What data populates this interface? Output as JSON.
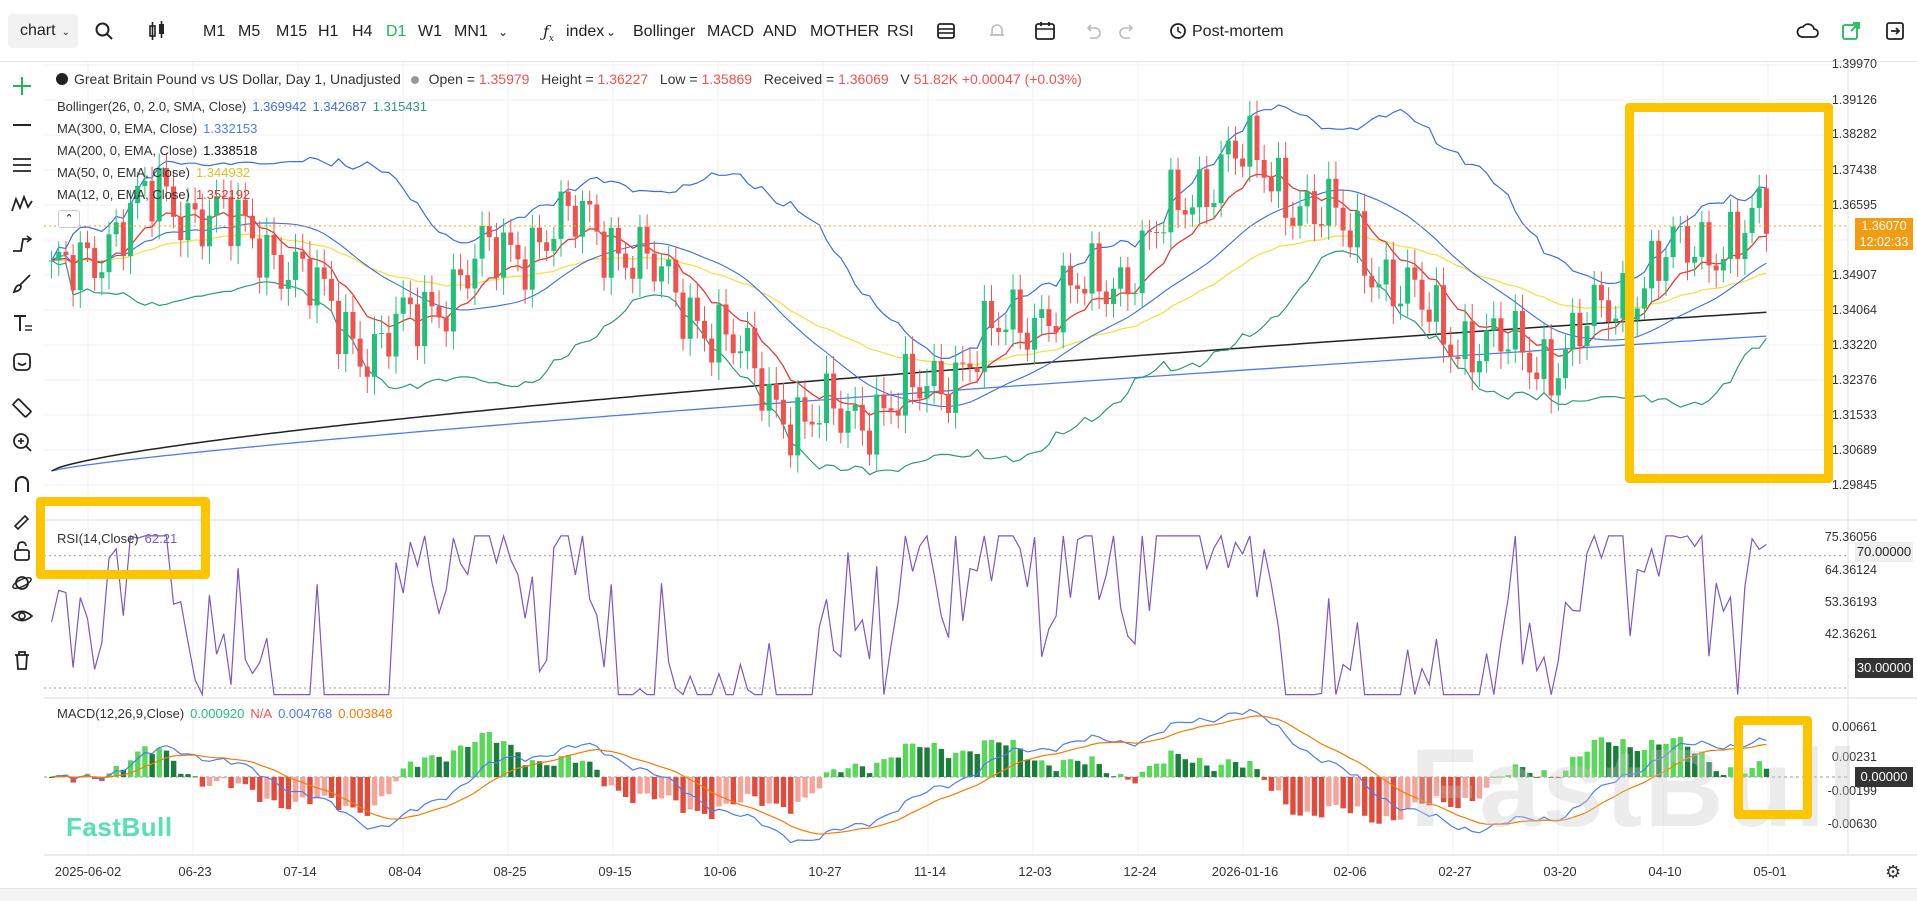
{
  "toolbar": {
    "chart_select": "chart",
    "timeframes": [
      "M1",
      "M5",
      "M15",
      "H1",
      "H4",
      "D1",
      "W1",
      "MN1"
    ],
    "active_timeframe": "D1",
    "index_label": "index",
    "indicators": [
      "Bollinger",
      "MACD",
      "AND",
      "MOTHER",
      "RSI"
    ],
    "postmortem": "Post-mortem"
  },
  "legend": {
    "title": "Great Britain Pound vs US Dollar, Day 1, Unadjusted",
    "open_label": "Open =",
    "open": "1.35979",
    "high_label": "Height =",
    "high": "1.36227",
    "low_label": "Low =",
    "low": "1.35869",
    "close_label": "Received =",
    "close": "1.36069",
    "vol_label": "V",
    "vol": "51.82K",
    "change": "+0.00047 (+0.03%)",
    "bollinger": {
      "label": "Bollinger(26, 0, 2.0, SMA, Close)",
      "v1": "1.369942",
      "v2": "1.342687",
      "v3": "1.315431"
    },
    "ma300": {
      "label": "MA(300, 0, EMA, Close)",
      "value": "1.332153"
    },
    "ma200": {
      "label": "MA(200, 0, EMA, Close)",
      "value": "1.338518"
    },
    "ma50": {
      "label": "MA(50, 0, EMA, Close)",
      "value": "1.344932"
    },
    "ma12": {
      "label": "MA(12, 0, EMA, Close)",
      "value": "1.352192"
    },
    "rsi": {
      "label": "RSI(14,Close)",
      "value": "62.21"
    },
    "macd": {
      "label": "MACD(12,26,9,Close)",
      "v1": "0.000920",
      "v2": "N/A",
      "v3": "0.004768",
      "v4": "0.003848"
    }
  },
  "price_axis": [
    "1.39970",
    "1.39126",
    "1.38282",
    "1.37438",
    "1.36595",
    "1.34907",
    "1.34064",
    "1.33220",
    "1.32376",
    "1.31533",
    "1.30689",
    "1.29845"
  ],
  "price_tag": {
    "price": "1.36070",
    "time": "12:02:33"
  },
  "rsi_axis": [
    "75.36056",
    "70.00000",
    "64.36124",
    "53.36193",
    "42.36261",
    "30.00000"
  ],
  "macd_axis": [
    "0.00661",
    "0.00231",
    "0.00000",
    "-0.00199",
    "-0.00630"
  ],
  "x_labels": [
    "2025-06-02",
    "06-23",
    "07-14",
    "08-04",
    "08-25",
    "09-15",
    "10-06",
    "10-27",
    "11-14",
    "12-03",
    "12-24",
    "2026-01-16",
    "02-06",
    "02-27",
    "03-20",
    "04-10",
    "05-01"
  ],
  "watermark": "FastBull",
  "watermark_big": "FastBull",
  "colors": {
    "up": "#22c07a",
    "down": "#ef5350",
    "accent": "#1db954",
    "highlight": "#fcc500",
    "bb": "#3a6fe0",
    "bbmid": "#2b9a78",
    "ma12": "#e53935",
    "ma50": "#f5e04a",
    "ma200": "#222222",
    "ma300": "#4d7cf0",
    "rsi": "#7e57c2",
    "macd": "#4d7cf0",
    "signal": "#f57c00"
  },
  "chart_data": {
    "type": "candlestick",
    "symbol": "GBPUSD",
    "timeframe": "D1",
    "x": [
      "2025-06-02",
      "06-23",
      "07-14",
      "08-04",
      "08-25",
      "09-15",
      "10-06",
      "10-27",
      "11-14",
      "12-03",
      "12-24",
      "2026-01-16",
      "02-06",
      "02-27",
      "03-20",
      "04-10",
      "05-01"
    ],
    "close_approx": [
      1.345,
      1.368,
      1.356,
      1.328,
      1.351,
      1.362,
      1.339,
      1.31,
      1.316,
      1.336,
      1.348,
      1.379,
      1.36,
      1.333,
      1.326,
      1.351,
      1.3607
    ],
    "ylim": [
      1.29845,
      1.3997
    ],
    "rsi_ylim": [
      30,
      75.36
    ],
    "macd_ylim": [
      -0.0063,
      0.0066
    ]
  }
}
